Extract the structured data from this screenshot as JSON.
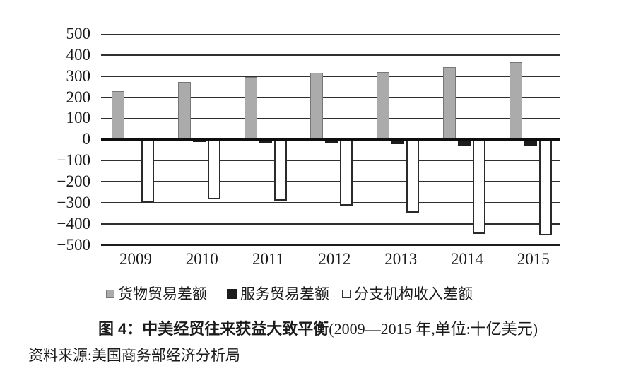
{
  "figure": {
    "caption_bold": "图 4：中美经贸往来获益大致平衡",
    "caption_note": "(2009—2015 年,单位:十亿美元)",
    "source": "资料来源:美国商务部经济分析局"
  },
  "chart_data": {
    "type": "bar",
    "title": "中美经贸往来获益大致平衡",
    "unit": "十亿美元",
    "categories": [
      "2009",
      "2010",
      "2011",
      "2012",
      "2013",
      "2014",
      "2015"
    ],
    "series": [
      {
        "name": "货物贸易差额",
        "color": "#ababab",
        "border": "#787878",
        "values": [
          227,
          273,
          295,
          315,
          320,
          344,
          367
        ]
      },
      {
        "name": "服务贸易差额",
        "color": "#1c1c1c",
        "border": "#1c1c1c",
        "values": [
          -9,
          -14,
          -17,
          -20,
          -24,
          -28,
          -33
        ]
      },
      {
        "name": "分支机构收入差额",
        "color": "#ffffff",
        "border": "#2a2a2a",
        "values": [
          -298,
          -283,
          -290,
          -313,
          -346,
          -449,
          -456
        ]
      }
    ],
    "ylim": [
      -500,
      500
    ],
    "ytick_step": 100,
    "yticks": [
      "500",
      "400",
      "300",
      "200",
      "100",
      "0",
      "−100",
      "−200",
      "−300",
      "−400",
      "−500"
    ],
    "grid": true,
    "legend_position": "bottom",
    "xlabel": "",
    "ylabel": ""
  }
}
